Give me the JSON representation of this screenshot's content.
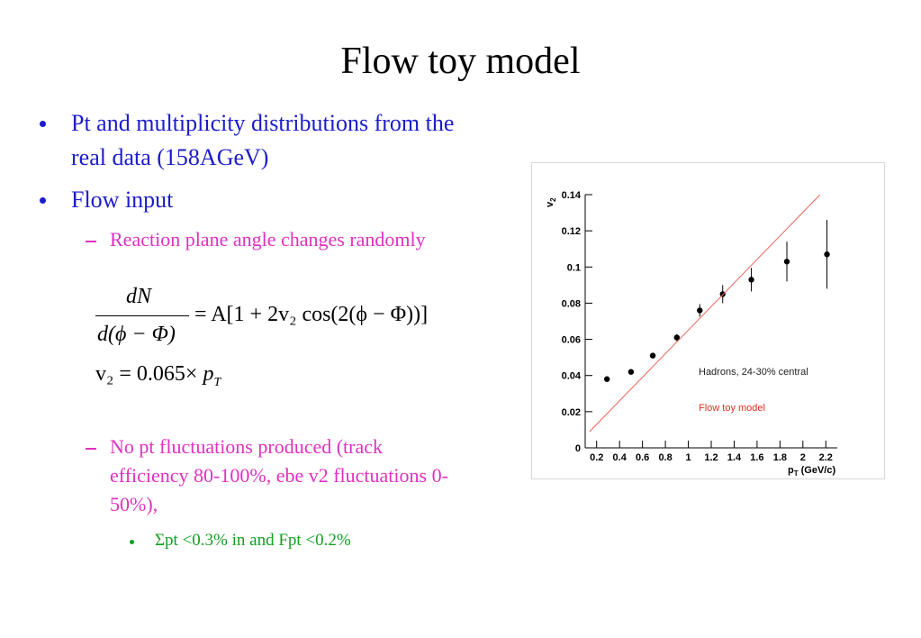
{
  "title": "Flow toy model",
  "bullets": [
    {
      "text": "Pt and multiplicity distributions from the real data (158AGeV)"
    },
    {
      "text": "Flow input",
      "sub": [
        {
          "text": "Reaction plane angle changes randomly"
        },
        {
          "text": "No pt fluctuations produced (track efficiency 80-100%, ebe v2 fluctuations 0-50%),",
          "sub": [
            {
              "text": "Σpt <0.3% in and Fpt <0.2%"
            }
          ]
        }
      ]
    }
  ],
  "formula1": {
    "numerator": "dN",
    "denominator": "d(ϕ − Φ)",
    "rhs": "= A[1 + 2v₂ cos(2(ϕ − Φ))]"
  },
  "formula2": {
    "lhs": "v₂ = 0.065×",
    "var": "p",
    "sub": "T"
  },
  "chart_data": {
    "type": "scatter",
    "xlabel": {
      "main": "p",
      "sub": "T",
      "unit": "(GeV/c)"
    },
    "ylabel": {
      "main": "v",
      "sub": "2"
    },
    "xlim": [
      0.1,
      2.3
    ],
    "ylim": [
      0,
      0.14
    ],
    "xticks": [
      0.2,
      0.4,
      0.6,
      0.8,
      1,
      1.2,
      1.4,
      1.6,
      1.8,
      2,
      2.2
    ],
    "yticks": [
      0,
      0.02,
      0.04,
      0.06,
      0.08,
      0.1,
      0.12,
      0.14
    ],
    "series": [
      {
        "name": "Hadrons, 24-30% central",
        "color": "#000000",
        "kind": "points",
        "x": [
          0.29,
          0.5,
          0.69,
          0.9,
          1.1,
          1.3,
          1.55,
          1.86,
          2.21
        ],
        "values": [
          0.038,
          0.042,
          0.051,
          0.061,
          0.076,
          0.085,
          0.093,
          0.103,
          0.107
        ],
        "errors": [
          0.001,
          0.001,
          0.0015,
          0.002,
          0.0035,
          0.005,
          0.0065,
          0.011,
          0.019
        ]
      },
      {
        "name": "Flow toy model",
        "color": "#e8645a",
        "kind": "line",
        "x": [
          0.137,
          2.15
        ],
        "values": [
          0.0089,
          0.14
        ]
      }
    ]
  }
}
